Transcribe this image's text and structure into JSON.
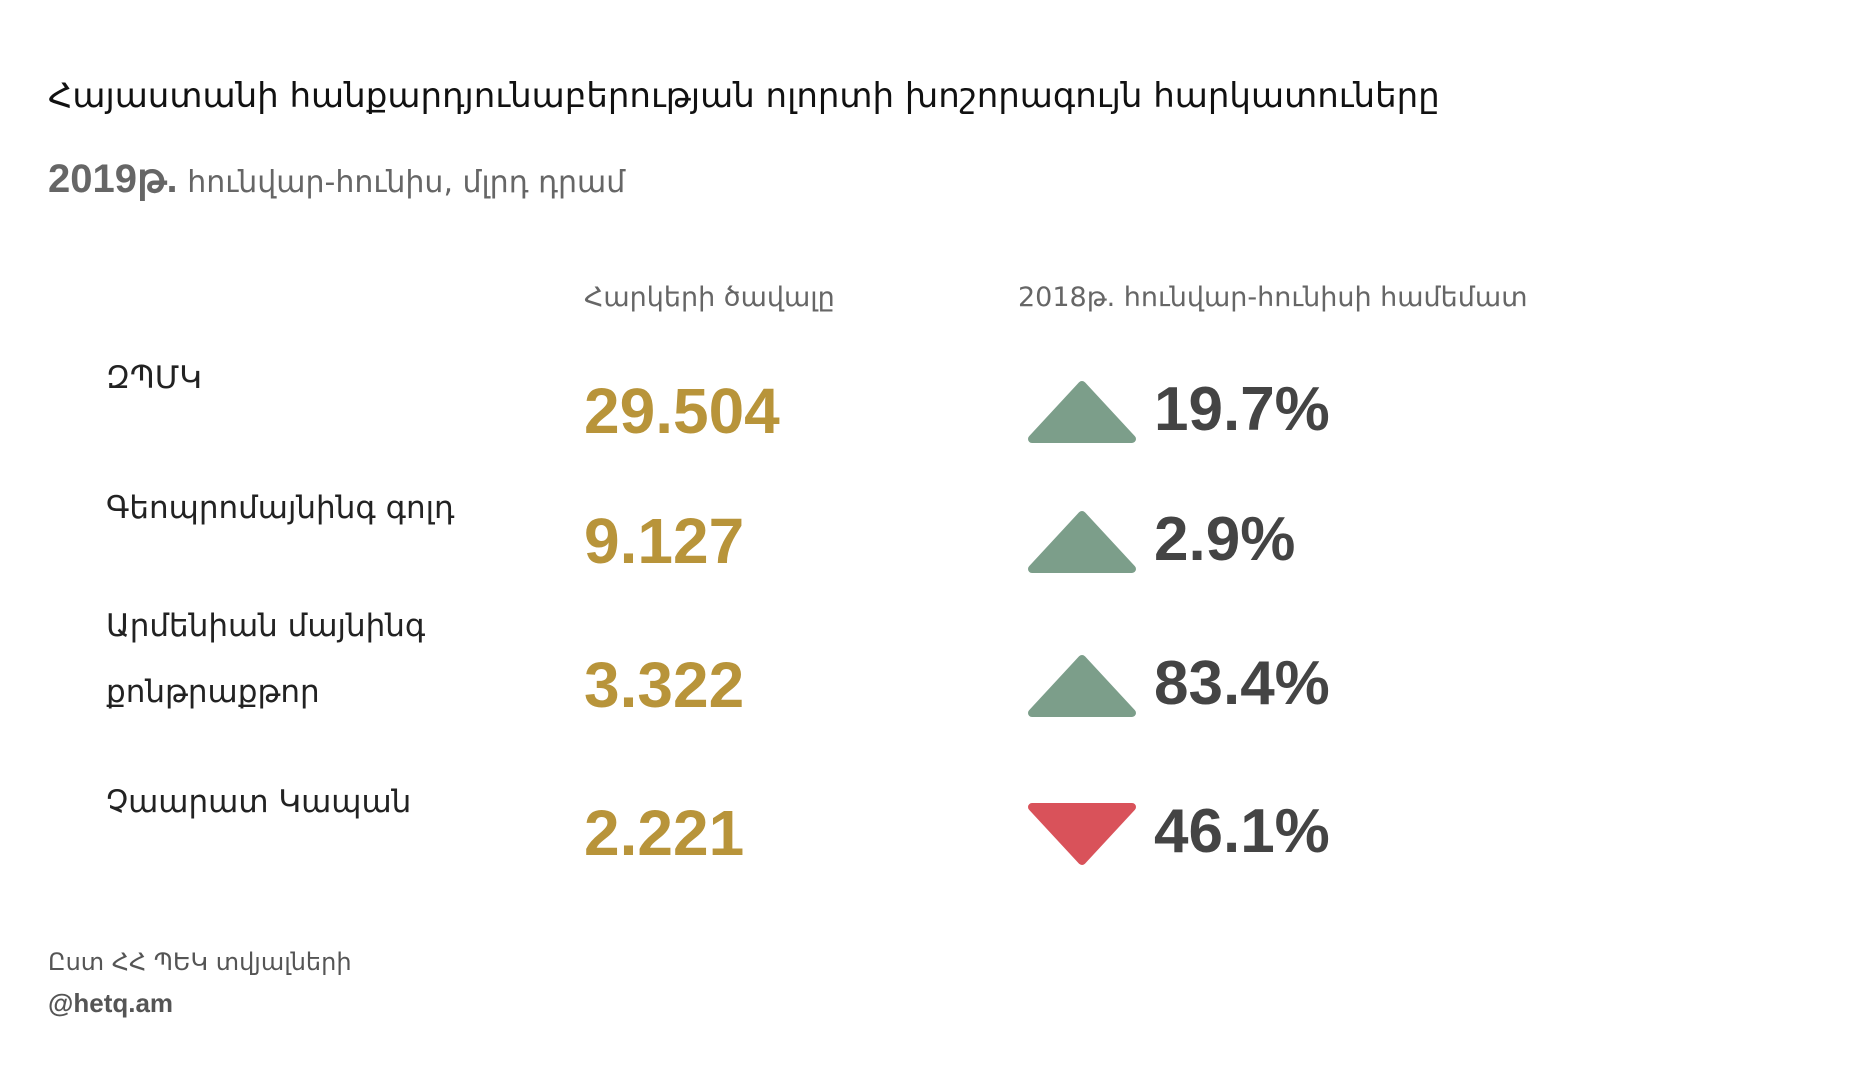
{
  "header": {
    "title": "Հայաստանի հանքարդյունաբերության ոլորտի խոշորագույն հարկատուները",
    "subtitle_year": "2019թ.",
    "subtitle": "հունվար-հունիս, մլրդ դրամ"
  },
  "table": {
    "columns": [
      "Հարկերի ծավալը",
      "2018թ. հունվար-հունիսի համեմատ"
    ],
    "value_color": "#b8943a",
    "up_color": "#7c9e8a",
    "down_color": "#d9525a",
    "rows": [
      {
        "name": "ԶՊՄԿ",
        "value": "29.504",
        "direction": "up",
        "change": "19.7%"
      },
      {
        "name": "Գեոպրոմայնինգ գոլդ",
        "value": "9.127",
        "direction": "up",
        "change": "2.9%"
      },
      {
        "name": "Արմենիան մայնինգ քոնթրաքթոր",
        "value": "3.322",
        "direction": "up",
        "change": "83.4%"
      },
      {
        "name": "Չաարատ Կապան",
        "value": "2.221",
        "direction": "down",
        "change": "46.1%"
      }
    ]
  },
  "footer": {
    "source": "Ըստ ՀՀ ՊԵԿ տվյալների",
    "handle": "@hetq.am"
  }
}
